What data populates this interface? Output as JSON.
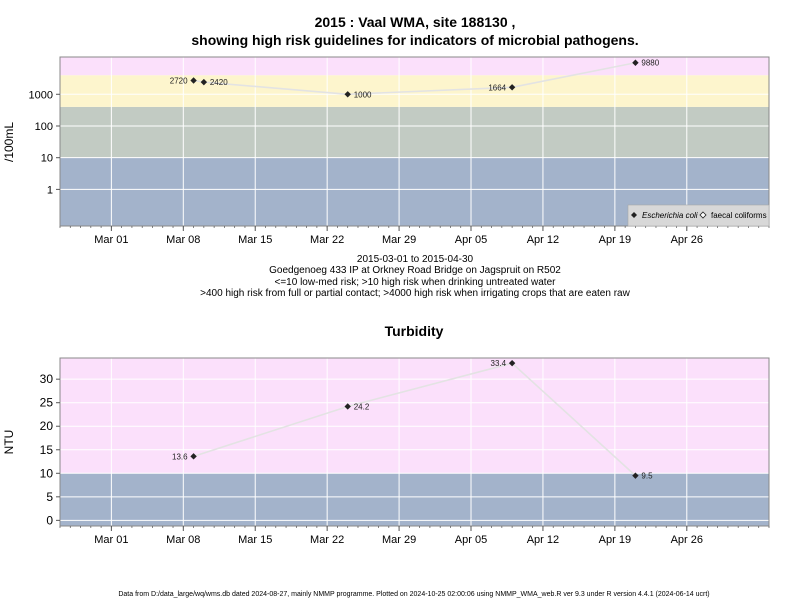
{
  "chart_data": [
    {
      "type": "scatter",
      "title_line1": "2015 : Vaal WMA, site 188130 ,",
      "title_line2": "showing high risk guidelines for indicators of microbial pathogens.",
      "ylabel": "/100mL",
      "yscale": "log",
      "ylim": [
        0.07,
        15000
      ],
      "xlim": [
        "2015-02-24",
        "2015-05-04"
      ],
      "x_ticks": [
        {
          "date": "2015-03-01",
          "label": "Mar 01"
        },
        {
          "date": "2015-03-08",
          "label": "Mar 08"
        },
        {
          "date": "2015-03-15",
          "label": "Mar 15"
        },
        {
          "date": "2015-03-22",
          "label": "Mar 22"
        },
        {
          "date": "2015-03-29",
          "label": "Mar 29"
        },
        {
          "date": "2015-04-05",
          "label": "Apr 05"
        },
        {
          "date": "2015-04-12",
          "label": "Apr 12"
        },
        {
          "date": "2015-04-19",
          "label": "Apr 19"
        },
        {
          "date": "2015-04-26",
          "label": "Apr 26"
        }
      ],
      "y_ticks": [
        {
          "value": 1,
          "label": "1"
        },
        {
          "value": 10,
          "label": "10"
        },
        {
          "value": 100,
          "label": "100"
        },
        {
          "value": 1000,
          "label": "1000"
        }
      ],
      "bands": [
        {
          "from": 0.07,
          "to": 10,
          "color": "#a3b3cb"
        },
        {
          "from": 10,
          "to": 400,
          "color": "#c2cbc3"
        },
        {
          "from": 400,
          "to": 4000,
          "color": "#fdf5cd"
        },
        {
          "from": 4000,
          "to": 15000,
          "color": "#fbe0fb"
        }
      ],
      "grid": true,
      "legend_position": "bottom-right",
      "legend": [
        {
          "label": "Escherichia coli",
          "marker": "filled-diamond"
        },
        {
          "label": "faecal coliforms",
          "marker": "open-diamond"
        }
      ],
      "series": [
        {
          "name": "Escherichia coli",
          "points": [
            {
              "x": "2015-03-09",
              "y": 2720,
              "label": "2720"
            },
            {
              "x": "2015-03-10",
              "y": 2420,
              "label": "2420"
            },
            {
              "x": "2015-03-24",
              "y": 1000,
              "label": "1000"
            },
            {
              "x": "2015-04-09",
              "y": 1664,
              "label": "1664"
            },
            {
              "x": "2015-04-21",
              "y": 9880,
              "label": "9880"
            }
          ]
        }
      ],
      "caption": [
        "2015-03-01 to 2015-04-30",
        "Goedgenoeg 433 IP at Orkney Road Bridge on Jagspruit on R502",
        "<=10 low-med risk; >10 high risk when drinking untreated water",
        ">400 high risk from full or partial contact; >4000 high risk when irrigating crops that are eaten raw"
      ]
    },
    {
      "type": "scatter",
      "title": "Turbidity",
      "ylabel": "NTU",
      "ylim": [
        -1.2,
        34.5
      ],
      "xlim": [
        "2015-02-24",
        "2015-05-04"
      ],
      "x_ticks": [
        {
          "date": "2015-03-01",
          "label": "Mar 01"
        },
        {
          "date": "2015-03-08",
          "label": "Mar 08"
        },
        {
          "date": "2015-03-15",
          "label": "Mar 15"
        },
        {
          "date": "2015-03-22",
          "label": "Mar 22"
        },
        {
          "date": "2015-03-29",
          "label": "Mar 29"
        },
        {
          "date": "2015-04-05",
          "label": "Apr 05"
        },
        {
          "date": "2015-04-12",
          "label": "Apr 12"
        },
        {
          "date": "2015-04-19",
          "label": "Apr 19"
        },
        {
          "date": "2015-04-26",
          "label": "Apr 26"
        }
      ],
      "y_ticks": [
        {
          "value": 0,
          "label": "0"
        },
        {
          "value": 5,
          "label": "5"
        },
        {
          "value": 10,
          "label": "10"
        },
        {
          "value": 15,
          "label": "15"
        },
        {
          "value": 20,
          "label": "20"
        },
        {
          "value": 25,
          "label": "25"
        },
        {
          "value": 30,
          "label": "30"
        }
      ],
      "bands": [
        {
          "from": -1.2,
          "to": 10,
          "color": "#a3b3cb"
        },
        {
          "from": 10,
          "to": 34.5,
          "color": "#fbe0fb"
        }
      ],
      "grid": true,
      "series": [
        {
          "points": [
            {
              "x": "2015-03-09",
              "y": 13.6,
              "label": "13.6"
            },
            {
              "x": "2015-03-24",
              "y": 24.2,
              "label": "24.2"
            },
            {
              "x": "2015-04-09",
              "y": 33.4,
              "label": "33.4"
            },
            {
              "x": "2015-04-21",
              "y": 9.5,
              "label": "9.5"
            }
          ]
        }
      ]
    }
  ],
  "footer": "Data from D:/data_large/wq/wms.db dated 2024-08-27, mainly NMMP programme. Plotted on 2024-10-25 02:00:06 using NMMP_WMA_web.R ver 9.3 under R version 4.4.1 (2024-06-14 ucrt)"
}
